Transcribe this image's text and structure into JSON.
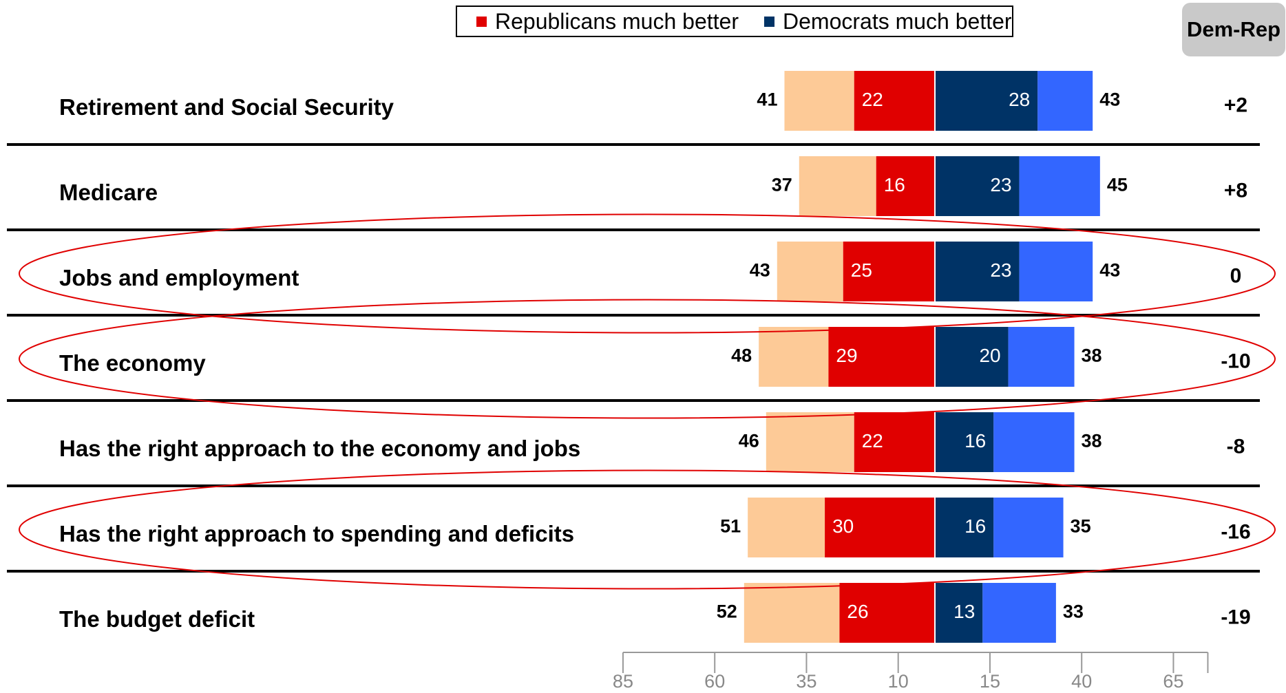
{
  "legend": {
    "rep_label": "Republicans much better",
    "dem_label": "Democrats much better"
  },
  "dem_rep_header": "Dem-Rep",
  "colors": {
    "rep_total": "#fdca97",
    "rep_much": "#e00000",
    "dem_much": "#003366",
    "dem_total": "#3366ff",
    "divider": "#000000",
    "highlight_ellipse": "#e00000",
    "axis": "#999999"
  },
  "chart_data": {
    "type": "bar",
    "orientation": "horizontal diverging",
    "categories": [
      "Retirement and Social Security",
      "Medicare",
      "Jobs and employment",
      "The economy",
      "Has the right approach to the economy and jobs",
      "Has the right approach to spending and deficits",
      "The budget deficit"
    ],
    "series": [
      {
        "name": "Republicans much better",
        "values": [
          22,
          16,
          25,
          29,
          22,
          30,
          26
        ]
      },
      {
        "name": "Democrats much better",
        "values": [
          28,
          23,
          23,
          20,
          16,
          16,
          13
        ]
      }
    ],
    "rep_total": [
      41,
      37,
      43,
      48,
      46,
      51,
      52
    ],
    "dem_total": [
      43,
      45,
      43,
      38,
      38,
      35,
      33
    ],
    "dem_rep": [
      "+2",
      "+8",
      "0",
      "-10",
      "-8",
      "-16",
      "-19"
    ],
    "highlighted_rows": [
      2,
      3,
      5
    ],
    "x_tick_labels": [
      "85",
      "60",
      "35",
      "10",
      "15",
      "40",
      "65"
    ],
    "x_range": [
      -85,
      65
    ],
    "grid": false
  }
}
